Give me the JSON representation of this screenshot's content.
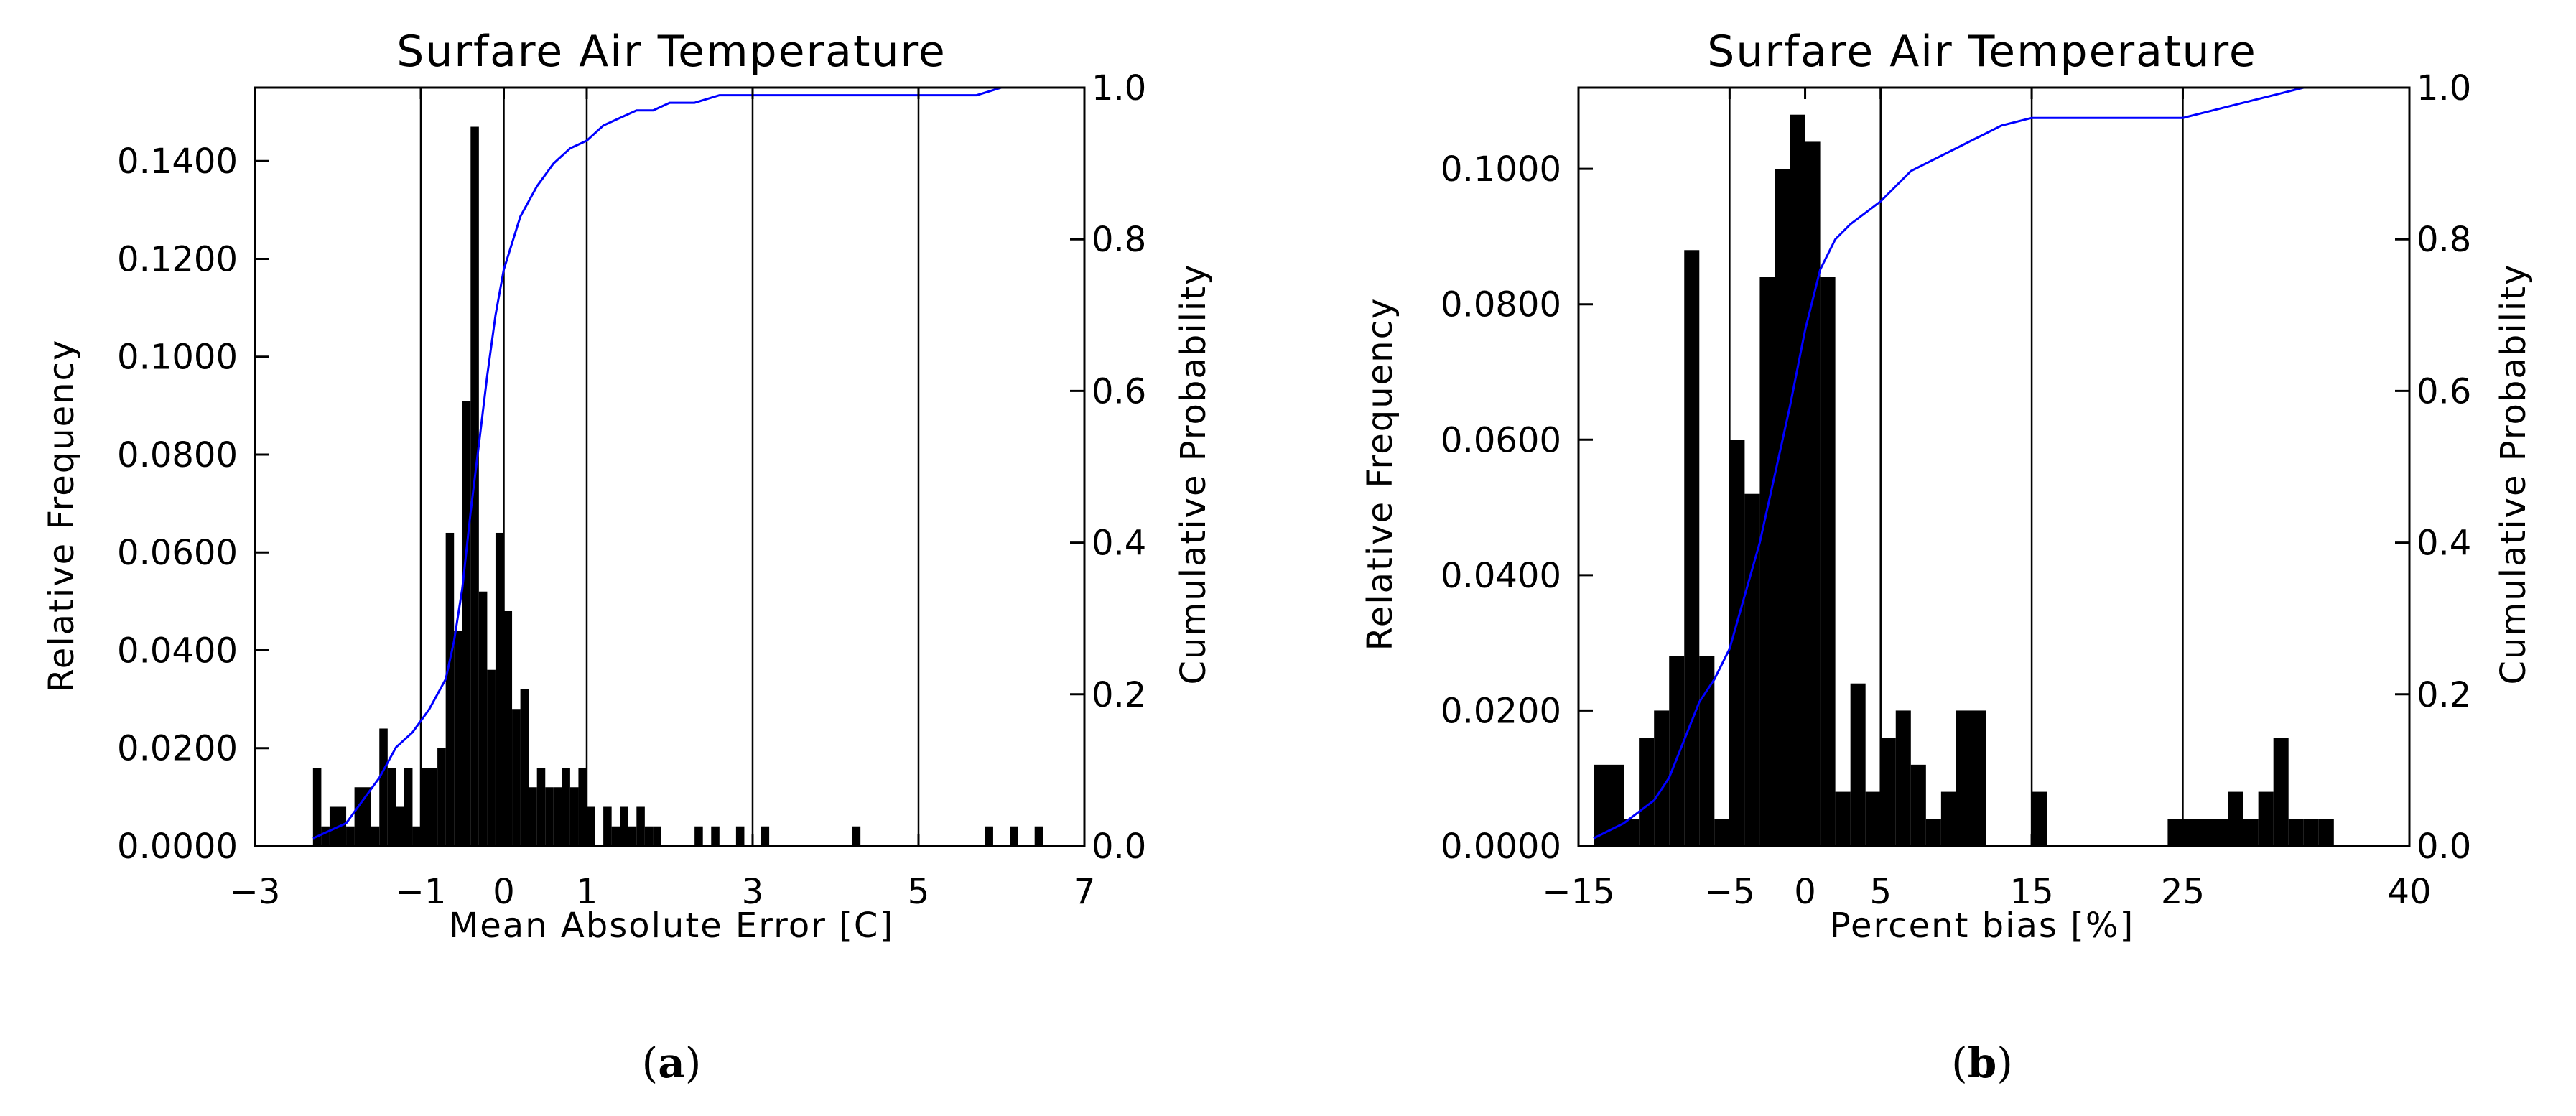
{
  "chart_data": [
    {
      "type": "bar",
      "panel_label": {
        "open": "(",
        "letter": "a",
        "close": ")"
      },
      "title": "Surfare Air Temperature",
      "xlabel": "Mean Absolute Error [C]",
      "ylabel": "Relative Frequency",
      "y2label": "Cumulative Probability",
      "xlim": [
        -3,
        7
      ],
      "ylim": [
        0,
        0.155
      ],
      "y2lim": [
        0,
        1
      ],
      "grid": false,
      "x_ticks": [
        -3,
        -1,
        0,
        1,
        3,
        5,
        7
      ],
      "x_tick_labels": [
        "−3",
        "−1",
        "0",
        "1",
        "3",
        "5",
        "7"
      ],
      "y_ticks": [
        0,
        0.02,
        0.04,
        0.06,
        0.08,
        0.1,
        0.12,
        0.14
      ],
      "y_tick_labels": [
        "0.0000",
        "0.0200",
        "0.0400",
        "0.0600",
        "0.0800",
        "0.1000",
        "0.1200",
        "0.1400"
      ],
      "y2_ticks": [
        0,
        0.2,
        0.4,
        0.6,
        0.8,
        1.0
      ],
      "y2_tick_labels": [
        "0.0",
        "0.2",
        "0.4",
        "0.6",
        "0.8",
        "1.0"
      ],
      "reference_lines_x": [
        -1,
        0,
        1,
        3,
        5
      ],
      "colors": {
        "bars": "#000000",
        "cumulative": "#0000ff"
      },
      "histogram": {
        "bin_width": 0.1,
        "x_start": [
          -2.3,
          -2.2,
          -2.1,
          -2.0,
          -1.9,
          -1.8,
          -1.7,
          -1.6,
          -1.5,
          -1.4,
          -1.3,
          -1.2,
          -1.1,
          -1.0,
          -0.9,
          -0.8,
          -0.7,
          -0.6,
          -0.5,
          -0.4,
          -0.3,
          -0.2,
          -0.1,
          0.0,
          0.1,
          0.2,
          0.3,
          0.4,
          0.5,
          0.6,
          0.7,
          0.8,
          0.9,
          1.0,
          1.2,
          1.3,
          1.4,
          1.5,
          1.6,
          1.7,
          1.8,
          2.3,
          2.5,
          2.8,
          3.1,
          4.2,
          5.8,
          6.1,
          6.4
        ],
        "values": [
          0.016,
          0.004,
          0.008,
          0.008,
          0.004,
          0.012,
          0.012,
          0.004,
          0.024,
          0.016,
          0.008,
          0.016,
          0.004,
          0.016,
          0.016,
          0.02,
          0.064,
          0.044,
          0.091,
          0.147,
          0.052,
          0.036,
          0.064,
          0.048,
          0.028,
          0.032,
          0.012,
          0.016,
          0.012,
          0.012,
          0.016,
          0.012,
          0.016,
          0.008,
          0.008,
          0.004,
          0.008,
          0.004,
          0.008,
          0.004,
          0.004,
          0.004,
          0.004,
          0.004,
          0.004,
          0.004,
          0.004,
          0.004,
          0.004
        ]
      },
      "cumulative": {
        "x": [
          -2.3,
          -2.1,
          -1.9,
          -1.7,
          -1.5,
          -1.3,
          -1.1,
          -0.9,
          -0.7,
          -0.6,
          -0.5,
          -0.4,
          -0.3,
          -0.2,
          -0.1,
          0.0,
          0.2,
          0.4,
          0.6,
          0.8,
          1.0,
          1.2,
          1.4,
          1.6,
          1.8,
          2.0,
          2.3,
          2.6,
          2.9,
          3.0,
          3.3,
          4.0,
          5.0,
          5.7,
          6.0,
          6.3,
          6.5
        ],
        "y": [
          0.01,
          0.02,
          0.03,
          0.06,
          0.09,
          0.13,
          0.15,
          0.18,
          0.22,
          0.27,
          0.34,
          0.44,
          0.53,
          0.62,
          0.7,
          0.76,
          0.83,
          0.87,
          0.9,
          0.92,
          0.93,
          0.95,
          0.96,
          0.97,
          0.97,
          0.98,
          0.98,
          0.99,
          0.99,
          0.99,
          0.99,
          0.99,
          0.99,
          0.99,
          1.0,
          1.0,
          1.0
        ]
      }
    },
    {
      "type": "bar",
      "panel_label": {
        "open": "(",
        "letter": "b",
        "close": ")"
      },
      "title": "Surfare Air Temperature",
      "xlabel": "Percent bias [%]",
      "ylabel": "Relative Frequency",
      "y2label": "Cumulative Probability",
      "xlim": [
        -15,
        40
      ],
      "ylim": [
        0,
        0.112
      ],
      "y2lim": [
        0,
        1
      ],
      "grid": false,
      "x_ticks": [
        -15,
        -5,
        0,
        5,
        15,
        25,
        40
      ],
      "x_tick_labels": [
        "−15",
        "−5",
        "0",
        "5",
        "15",
        "25",
        "40"
      ],
      "y_ticks": [
        0,
        0.02,
        0.04,
        0.06,
        0.08,
        0.1
      ],
      "y_tick_labels": [
        "0.0000",
        "0.0200",
        "0.0400",
        "0.0600",
        "0.0800",
        "0.1000"
      ],
      "y2_ticks": [
        0,
        0.2,
        0.4,
        0.6,
        0.8,
        1.0
      ],
      "y2_tick_labels": [
        "0.0",
        "0.2",
        "0.4",
        "0.6",
        "0.8",
        "1.0"
      ],
      "reference_lines_x": [
        -5,
        5,
        15,
        25
      ],
      "colors": {
        "bars": "#000000",
        "cumulative": "#0000ff"
      },
      "histogram": {
        "bin_width": 1,
        "x_start": [
          -14,
          -13,
          -12,
          -11,
          -10,
          -9,
          -8,
          -7,
          -6,
          -5,
          -4,
          -3,
          -2,
          -1,
          0,
          1,
          2,
          3,
          4,
          5,
          6,
          7,
          8,
          9,
          10,
          11,
          15,
          24,
          25,
          26,
          27,
          28,
          29,
          30,
          31,
          32,
          33,
          34
        ],
        "values": [
          0.012,
          0.012,
          0.004,
          0.016,
          0.02,
          0.028,
          0.088,
          0.028,
          0.004,
          0.06,
          0.052,
          0.084,
          0.1,
          0.108,
          0.104,
          0.084,
          0.008,
          0.024,
          0.008,
          0.016,
          0.02,
          0.012,
          0.004,
          0.008,
          0.02,
          0.02,
          0.008,
          0.004,
          0.004,
          0.004,
          0.004,
          0.008,
          0.004,
          0.008,
          0.016,
          0.004,
          0.004,
          0.004
        ]
      },
      "cumulative": {
        "x": [
          -14,
          -12,
          -10,
          -9,
          -8,
          -7,
          -6,
          -5,
          -4,
          -3,
          -2,
          -1,
          0,
          1,
          2,
          3,
          5,
          7,
          9,
          11,
          12,
          13,
          15,
          20,
          25,
          27,
          29,
          31,
          33,
          35,
          37
        ],
        "y": [
          0.01,
          0.03,
          0.06,
          0.09,
          0.14,
          0.19,
          0.22,
          0.26,
          0.33,
          0.4,
          0.49,
          0.58,
          0.68,
          0.76,
          0.8,
          0.82,
          0.85,
          0.89,
          0.91,
          0.93,
          0.94,
          0.95,
          0.96,
          0.96,
          0.96,
          0.97,
          0.98,
          0.99,
          1.0,
          1.0,
          1.0
        ]
      }
    }
  ]
}
